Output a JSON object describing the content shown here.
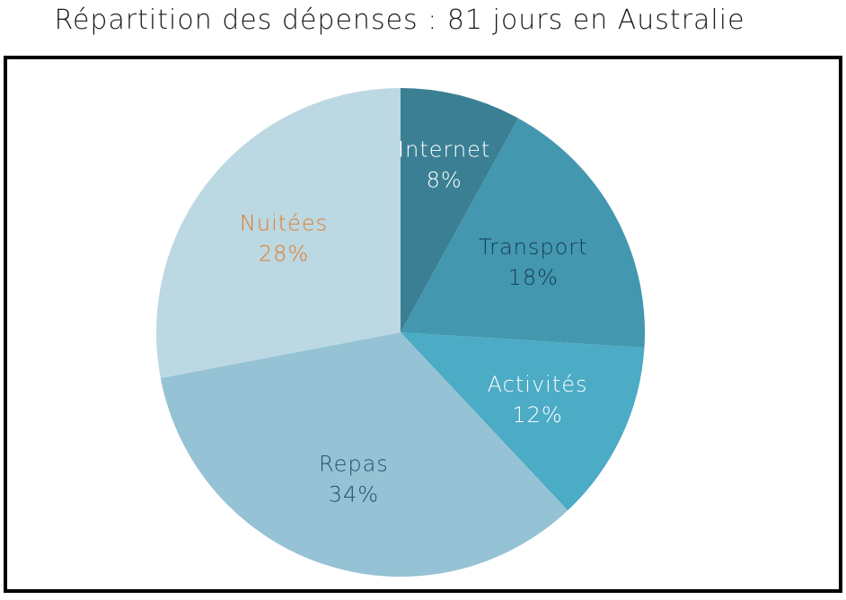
{
  "chart_data": {
    "type": "pie",
    "title": "Répartition des dépenses : 81 jours en Australie",
    "slices": [
      {
        "label": "Internet",
        "value": 8,
        "display": "8%",
        "color": "#3a7f93",
        "text_color": "#ffffff"
      },
      {
        "label": "Transport",
        "value": 18,
        "display": "18%",
        "color": "#4397ae",
        "text_color": "#163d57"
      },
      {
        "label": "Activités",
        "value": 12,
        "display": "12%",
        "color": "#4cabc5",
        "text_color": "#ffffff"
      },
      {
        "label": "Repas",
        "value": 34,
        "display": "34%",
        "color": "#95c2d4",
        "text_color": "#2b4f6a"
      },
      {
        "label": "Nuitées",
        "value": 28,
        "display": "28%",
        "color": "#bcd8e3",
        "text_color": "#e07b2a"
      }
    ],
    "legend": "none"
  }
}
